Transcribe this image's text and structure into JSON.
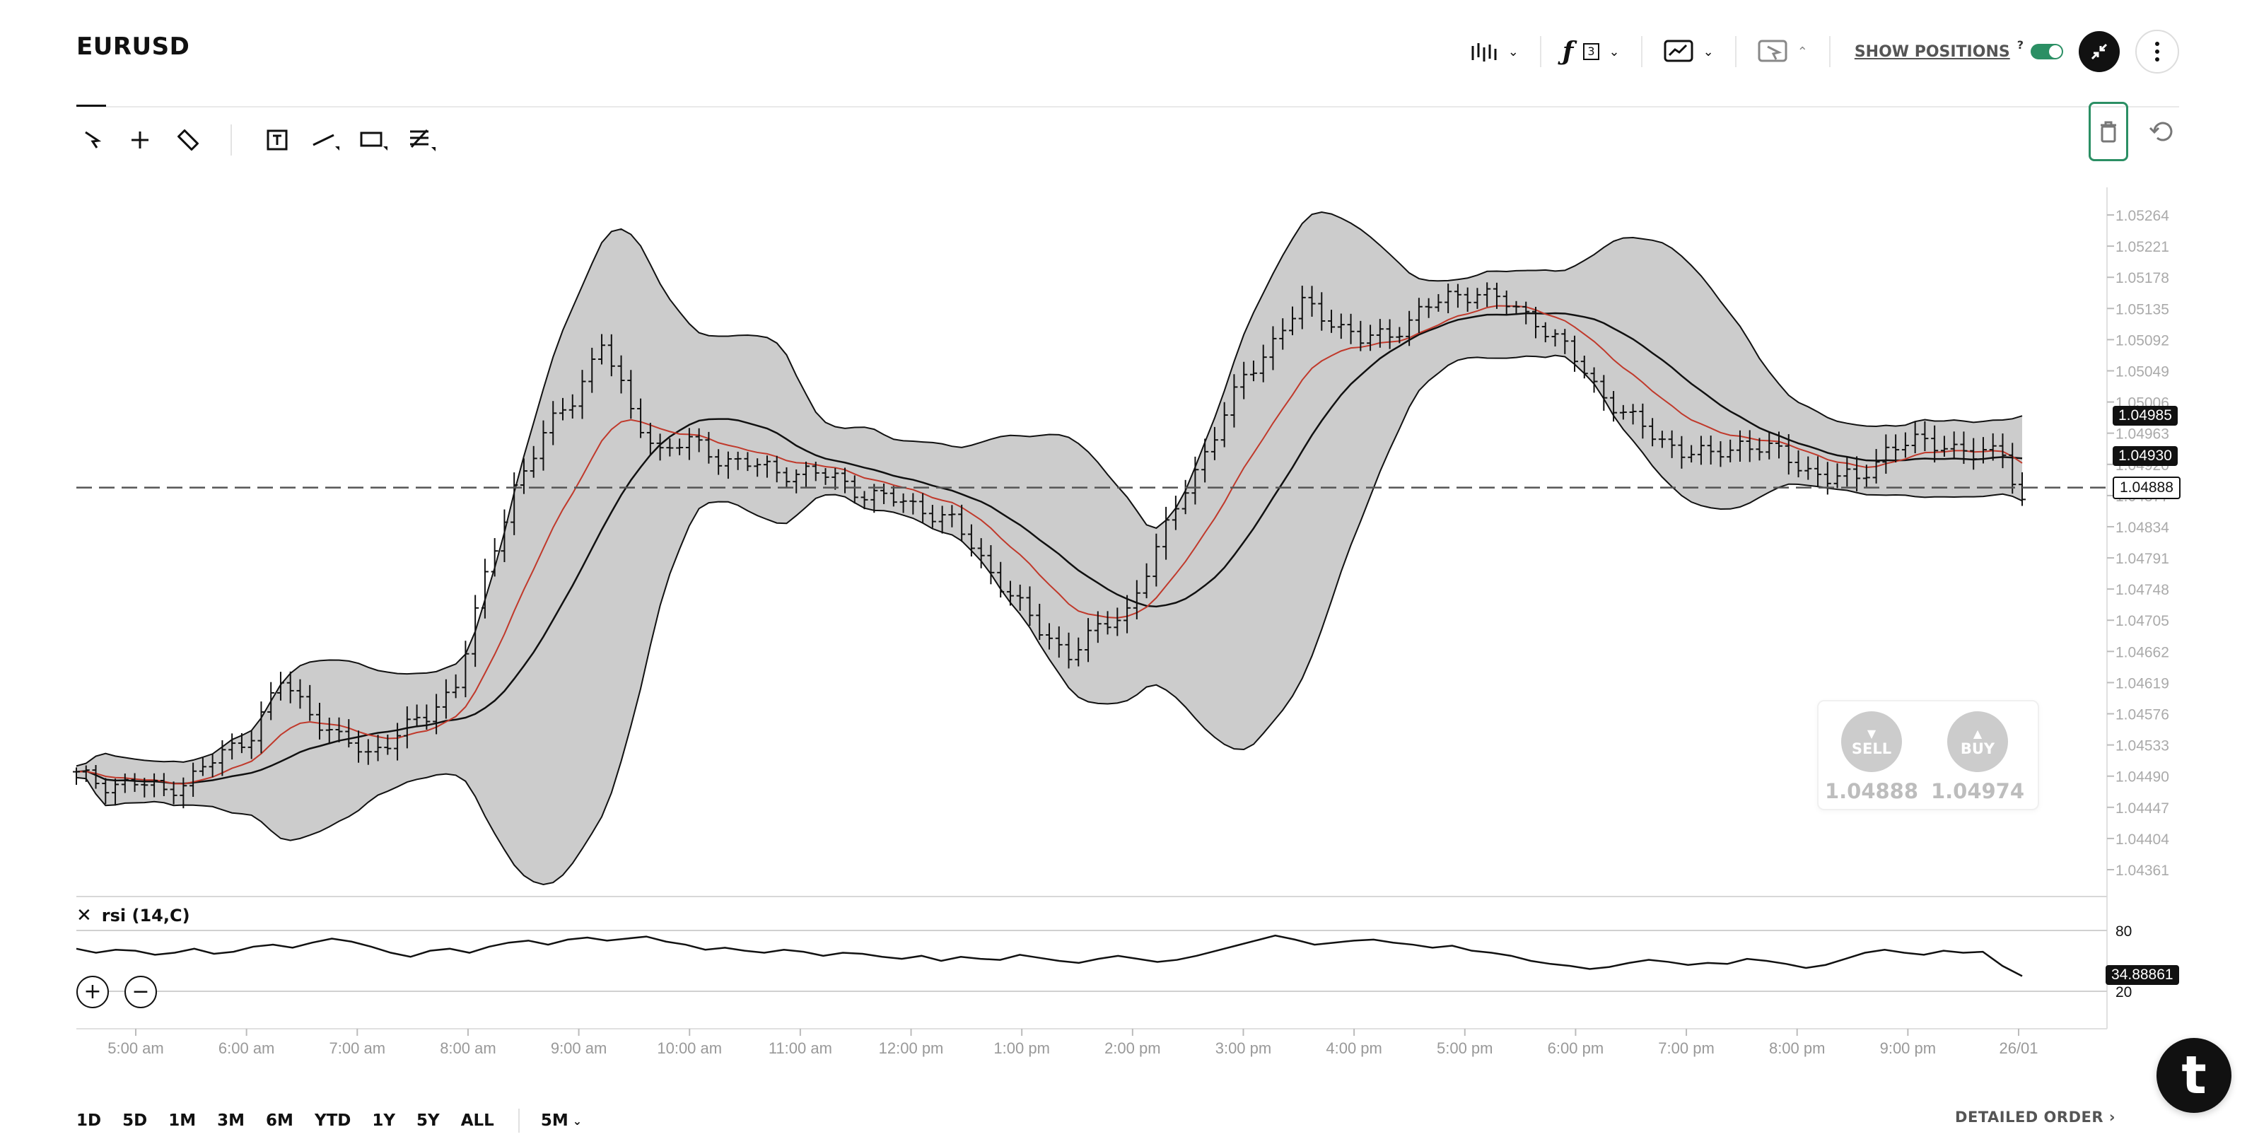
{
  "header": {
    "symbol": "EURUSD",
    "show_positions_label": "SHOW POSITIONS",
    "show_positions_help": "?",
    "indicators_count": "3",
    "icons": [
      "bars-icon",
      "function-icon",
      "chart-type-icon",
      "cursor-off-icon",
      "collapse-icon",
      "more-icon"
    ]
  },
  "toolbar": {
    "tools": [
      "pointer-icon",
      "crosshair-icon",
      "ruler-icon",
      "text-icon",
      "line-icon",
      "rectangle-icon",
      "fib-icon"
    ],
    "right": [
      "trash-icon",
      "reset-icon"
    ]
  },
  "chart_data": {
    "type": "ohlc",
    "symbol": "EURUSD",
    "interval": "5M",
    "x_ticks": [
      "5:00 am",
      "6:00 am",
      "7:00 am",
      "8:00 am",
      "9:00 am",
      "10:00 am",
      "11:00 am",
      "12:00 pm",
      "1:00 pm",
      "2:00 pm",
      "3:00 pm",
      "4:00 pm",
      "5:00 pm",
      "6:00 pm",
      "7:00 pm",
      "8:00 pm",
      "9:00 pm",
      "26/01"
    ],
    "y_ticks": [
      "1.05264",
      "1.05221",
      "1.05178",
      "1.05135",
      "1.05092",
      "1.05049",
      "1.05006",
      "1.04963",
      "1.04920",
      "1.04877",
      "1.04834",
      "1.04791",
      "1.04748",
      "1.04705",
      "1.04662",
      "1.04619",
      "1.04576",
      "1.04533",
      "1.04490",
      "1.04447",
      "1.04404",
      "1.04361"
    ],
    "ylim": [
      1.04361,
      1.05264
    ],
    "price_close_path": [
      [
        0,
        1.0449
      ],
      [
        3,
        1.0448
      ],
      [
        6,
        1.0448
      ],
      [
        9,
        1.0447
      ],
      [
        12,
        1.0449
      ],
      [
        15,
        1.0452
      ],
      [
        18,
        1.0455
      ],
      [
        21,
        1.0462
      ],
      [
        24,
        1.0458
      ],
      [
        27,
        1.0454
      ],
      [
        30,
        1.0452
      ],
      [
        33,
        1.0455
      ],
      [
        36,
        1.0457
      ],
      [
        39,
        1.0462
      ],
      [
        42,
        1.0476
      ],
      [
        45,
        1.0489
      ],
      [
        48,
        1.0496
      ],
      [
        51,
        1.0501
      ],
      [
        54,
        1.0509
      ],
      [
        57,
        1.0499
      ],
      [
        60,
        1.0494
      ],
      [
        63,
        1.0495
      ],
      [
        66,
        1.0493
      ],
      [
        69,
        1.0492
      ],
      [
        72,
        1.0491
      ],
      [
        75,
        1.0491
      ],
      [
        78,
        1.049
      ],
      [
        81,
        1.0488
      ],
      [
        84,
        1.0487
      ],
      [
        87,
        1.0486
      ],
      [
        90,
        1.0484
      ],
      [
        93,
        1.0479
      ],
      [
        96,
        1.0474
      ],
      [
        99,
        1.0469
      ],
      [
        102,
        1.0466
      ],
      [
        105,
        1.0469
      ],
      [
        108,
        1.0472
      ],
      [
        111,
        1.048
      ],
      [
        114,
        1.0489
      ],
      [
        117,
        1.0496
      ],
      [
        120,
        1.0504
      ],
      [
        123,
        1.0509
      ],
      [
        126,
        1.0514
      ],
      [
        129,
        1.0512
      ],
      [
        132,
        1.0509
      ],
      [
        135,
        1.051
      ],
      [
        138,
        1.0513
      ],
      [
        141,
        1.0515
      ],
      [
        144,
        1.0516
      ],
      [
        147,
        1.0514
      ],
      [
        150,
        1.0512
      ],
      [
        153,
        1.0508
      ],
      [
        156,
        1.0503
      ],
      [
        159,
        1.0499
      ],
      [
        162,
        1.0496
      ],
      [
        165,
        1.0494
      ],
      [
        168,
        1.0493
      ],
      [
        171,
        1.0495
      ],
      [
        174,
        1.0494
      ],
      [
        177,
        1.0492
      ],
      [
        180,
        1.049
      ],
      [
        183,
        1.049
      ],
      [
        186,
        1.0494
      ],
      [
        189,
        1.0495
      ],
      [
        192,
        1.0495
      ],
      [
        195,
        1.0493
      ],
      [
        198,
        1.0494
      ],
      [
        200,
        1.0487
      ]
    ],
    "series": [
      {
        "name": "bollinger-upper",
        "color": "#111111"
      },
      {
        "name": "bollinger-lower",
        "color": "#111111"
      },
      {
        "name": "ema-fast",
        "color": "#c0392b"
      },
      {
        "name": "ma-slow",
        "color": "#111111"
      }
    ],
    "price_tags": [
      {
        "label": "1.04985",
        "value": 1.04985,
        "style": "dark"
      },
      {
        "label": "1.04930",
        "value": 1.0493,
        "style": "dark"
      },
      {
        "label": "1.04888",
        "value": 1.04888,
        "style": "light"
      }
    ],
    "rsi": {
      "label": "rsi (14,C)",
      "levels": [
        "80",
        "20"
      ],
      "current": "34.88861",
      "values": [
        62,
        58,
        61,
        60,
        56,
        58,
        62,
        57,
        59,
        64,
        66,
        63,
        68,
        72,
        69,
        64,
        58,
        54,
        60,
        62,
        58,
        64,
        68,
        70,
        66,
        71,
        73,
        70,
        72,
        74,
        69,
        66,
        61,
        63,
        60,
        58,
        61,
        59,
        55,
        58,
        57,
        54,
        52,
        55,
        50,
        54,
        52,
        51,
        56,
        53,
        50,
        48,
        52,
        55,
        52,
        49,
        51,
        55,
        60,
        65,
        70,
        75,
        71,
        66,
        68,
        70,
        71,
        68,
        66,
        63,
        65,
        60,
        58,
        55,
        50,
        47,
        45,
        42,
        44,
        48,
        51,
        49,
        46,
        48,
        47,
        52,
        50,
        47,
        43,
        46,
        52,
        58,
        61,
        58,
        56,
        60,
        58,
        59,
        45,
        35
      ]
    }
  },
  "trade": {
    "sell_label": "SELL",
    "sell_price": "1.04888",
    "buy_label": "BUY",
    "buy_price": "1.04974"
  },
  "ranges": [
    "1D",
    "5D",
    "1M",
    "3M",
    "6M",
    "YTD",
    "1Y",
    "5Y",
    "ALL"
  ],
  "interval_label": "5M",
  "detailed_order": "DETAILED ORDER",
  "fab_label": "t"
}
